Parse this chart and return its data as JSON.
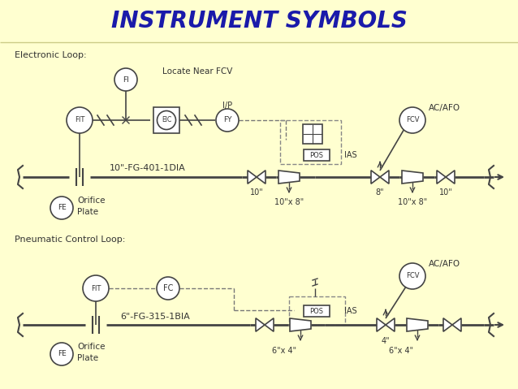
{
  "title": "INSTRUMENT SYMBOLS",
  "title_color": "#1a1aaa",
  "bg_color": "#ffffd0",
  "line_color": "#444444",
  "text_color": "#333333",
  "loop1_label": "Electronic Loop:",
  "loop2_label": "Pneumatic Control Loop:",
  "pipe1_label": "10\"-FG-401-1DIA",
  "pipe2_label": "6\"-FG-315-1BIA",
  "locate_label": "Locate Near FCV",
  "ip_label": "I/P",
  "pos_label": "POS",
  "ias_label": "IAS",
  "acafo_label1": "AC/AFO",
  "acafo_label2": "AC/AFO",
  "orifice_label1": "Orifice\nPlate",
  "orifice_label2": "Orifice\nPlate",
  "size_10a": "10\"",
  "size_8": "8\"",
  "size_10x8a": "10\"x 8\"",
  "size_10x8b": "10\"x 8\"",
  "size_10b": "10\"",
  "size_4": "4\"",
  "size_6x4a": "6\"x 4\"",
  "size_6x4b": "6\"x 4\""
}
